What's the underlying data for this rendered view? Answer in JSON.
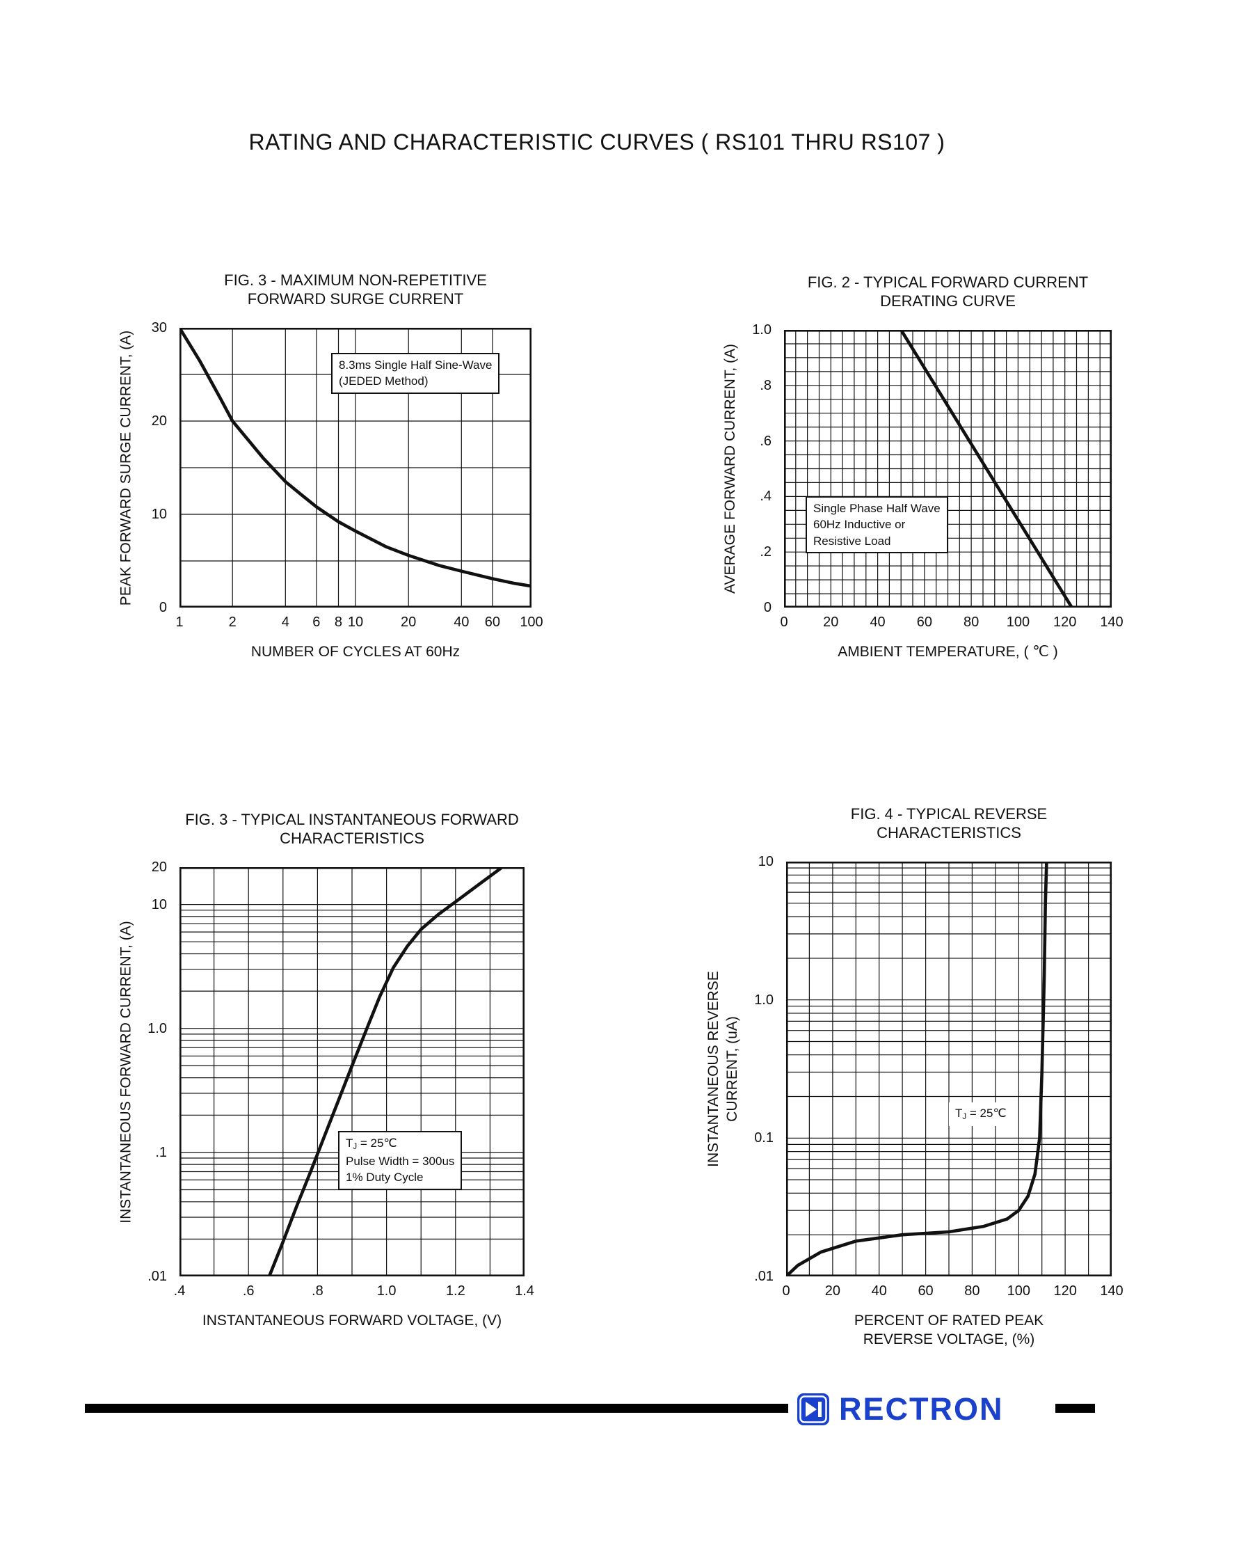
{
  "page": {
    "title": "RATING AND CHARACTERISTIC CURVES ( RS101 THRU RS107 )"
  },
  "footer": {
    "brand": "RECTRON",
    "brand_color": "#1a41cc",
    "icon": "diode-logo"
  },
  "chart_data": [
    {
      "id": "surge-current",
      "type": "line",
      "title_lines": [
        "FIG. 3 - MAXIMUM NON-REPETITIVE",
        "FORWARD SURGE CURRENT"
      ],
      "xlabel_lines": [
        "NUMBER OF CYCLES AT 60Hz"
      ],
      "ylabel_lines": [
        "PEAK FORWARD SURGE CURRENT, (A)"
      ],
      "x_scale": "log",
      "y_scale": "linear",
      "xlim": [
        1,
        100
      ],
      "ylim": [
        0,
        30
      ],
      "x_grid": [
        1,
        2,
        4,
        6,
        8,
        10,
        20,
        40,
        60,
        100
      ],
      "y_grid": [
        0,
        5,
        10,
        15,
        20,
        25,
        30
      ],
      "x_ticks": [
        1,
        2,
        4,
        6,
        8,
        10,
        20,
        40,
        60,
        100
      ],
      "x_tick_labels": [
        "1",
        "2",
        "4",
        "6",
        "8",
        "10",
        "20",
        "40",
        "60",
        "100"
      ],
      "y_ticks": [
        0,
        10,
        20,
        30
      ],
      "y_tick_labels": [
        "0",
        "10",
        "20",
        "30"
      ],
      "annotations": [
        {
          "lines": [
            "8.3ms Single Half Sine-Wave",
            "(JEDED Method)"
          ],
          "boxed": true,
          "fx": 0.43,
          "fy": 0.09
        }
      ],
      "series": [
        {
          "name": "peak-forward-surge-current",
          "x": [
            1,
            1.3,
            1.7,
            2,
            2.5,
            3,
            4,
            5,
            6,
            8,
            10,
            15,
            20,
            30,
            40,
            60,
            80,
            100
          ],
          "y": [
            30,
            26.5,
            22.5,
            20,
            17.8,
            16,
            13.5,
            12,
            10.8,
            9.2,
            8.2,
            6.5,
            5.6,
            4.5,
            3.9,
            3.1,
            2.6,
            2.3
          ]
        }
      ]
    },
    {
      "id": "derating-curve",
      "type": "line",
      "title_lines": [
        "FIG. 2 - TYPICAL FORWARD CURRENT",
        "DERATING CURVE"
      ],
      "xlabel_lines": [
        "AMBIENT TEMPERATURE, ( ℃ )"
      ],
      "ylabel_lines": [
        "AVERAGE FORWARD CURRENT, (A)"
      ],
      "x_scale": "linear",
      "y_scale": "linear",
      "xlim": [
        0,
        140
      ],
      "ylim": [
        0,
        1
      ],
      "x_grid": [
        0,
        5,
        10,
        15,
        20,
        25,
        30,
        35,
        40,
        45,
        50,
        55,
        60,
        65,
        70,
        75,
        80,
        85,
        90,
        95,
        100,
        105,
        110,
        115,
        120,
        125,
        130,
        135,
        140
      ],
      "y_grid": [
        0,
        0.05,
        0.1,
        0.15,
        0.2,
        0.25,
        0.3,
        0.35,
        0.4,
        0.45,
        0.5,
        0.55,
        0.6,
        0.65,
        0.7,
        0.75,
        0.8,
        0.85,
        0.9,
        0.95,
        1
      ],
      "x_ticks": [
        0,
        20,
        40,
        60,
        80,
        100,
        120,
        140
      ],
      "x_tick_labels": [
        "0",
        "20",
        "40",
        "60",
        "80",
        "100",
        "120",
        "140"
      ],
      "y_ticks": [
        0,
        0.2,
        0.4,
        0.6,
        0.8,
        1
      ],
      "y_tick_labels": [
        "0",
        ".2",
        ".4",
        ".6",
        ".8",
        "1.0"
      ],
      "annotations": [
        {
          "lines": [
            "Single Phase Half Wave",
            "60Hz Inductive or",
            "Resistive Load"
          ],
          "boxed": true,
          "fx": 0.065,
          "fy": 0.6
        }
      ],
      "series": [
        {
          "name": "average-forward-current",
          "x": [
            0,
            50,
            123
          ],
          "y": [
            1,
            1,
            0
          ]
        }
      ]
    },
    {
      "id": "forward-characteristics",
      "type": "line",
      "title_lines": [
        "FIG. 3 - TYPICAL INSTANTANEOUS FORWARD",
        "CHARACTERISTICS"
      ],
      "xlabel_lines": [
        "INSTANTANEOUS FORWARD VOLTAGE, (V)"
      ],
      "ylabel_lines": [
        "INSTANTANEOUS FORWARD CURRENT, (A)"
      ],
      "x_scale": "linear",
      "y_scale": "log",
      "xlim": [
        0.4,
        1.4
      ],
      "ylim": [
        0.01,
        20
      ],
      "x_grid": [
        0.4,
        0.5,
        0.6,
        0.7,
        0.8,
        0.9,
        1,
        1.1,
        1.2,
        1.3,
        1.4
      ],
      "y_grid": [
        0.01,
        0.02,
        0.03,
        0.04,
        0.05,
        0.06,
        0.07,
        0.08,
        0.09,
        0.1,
        0.2,
        0.3,
        0.4,
        0.5,
        0.6,
        0.7,
        0.8,
        0.9,
        1,
        2,
        3,
        4,
        5,
        6,
        7,
        8,
        9,
        10,
        20
      ],
      "x_ticks": [
        0.4,
        0.6,
        0.8,
        1,
        1.2,
        1.4
      ],
      "x_tick_labels": [
        ".4",
        ".6",
        ".8",
        "1.0",
        "1.2",
        "1.4"
      ],
      "y_ticks": [
        0.01,
        0.1,
        1,
        10,
        20
      ],
      "y_tick_labels": [
        ".01",
        ".1",
        "1.0",
        "10",
        "20"
      ],
      "annotations": [
        {
          "lines": [
            "TJ = 25℃",
            "Pulse Width = 300us",
            "1% Duty Cycle"
          ],
          "boxed": true,
          "fx": 0.46,
          "fy": 0.645
        }
      ],
      "series": [
        {
          "name": "instantaneous-forward-current",
          "x": [
            0.66,
            0.7,
            0.74,
            0.78,
            0.82,
            0.86,
            0.9,
            0.94,
            0.98,
            1.02,
            1.06,
            1.1,
            1.15,
            1.2,
            1.26,
            1.33
          ],
          "y": [
            0.01,
            0.019,
            0.037,
            0.07,
            0.135,
            0.26,
            0.5,
            0.95,
            1.8,
            3.1,
            4.6,
            6.3,
            8.3,
            10.5,
            14,
            19.5
          ]
        }
      ]
    },
    {
      "id": "reverse-characteristics",
      "type": "line",
      "title_lines": [
        "FIG. 4 - TYPICAL REVERSE",
        "CHARACTERISTICS"
      ],
      "xlabel_lines": [
        "PERCENT OF RATED PEAK",
        "REVERSE VOLTAGE, (%)"
      ],
      "ylabel_lines": [
        "INSTANTANEOUS REVERSE",
        "CURRENT, (uA)"
      ],
      "x_scale": "linear",
      "y_scale": "log",
      "xlim": [
        0,
        140
      ],
      "ylim": [
        0.01,
        10
      ],
      "x_grid": [
        0,
        10,
        20,
        30,
        40,
        50,
        60,
        70,
        80,
        90,
        100,
        110,
        120,
        130,
        140
      ],
      "y_grid": [
        0.01,
        0.02,
        0.03,
        0.04,
        0.05,
        0.06,
        0.07,
        0.08,
        0.09,
        0.1,
        0.2,
        0.3,
        0.4,
        0.5,
        0.6,
        0.7,
        0.8,
        0.9,
        1,
        2,
        3,
        4,
        5,
        6,
        7,
        8,
        9,
        10
      ],
      "x_ticks": [
        0,
        20,
        40,
        60,
        80,
        100,
        120,
        140
      ],
      "x_tick_labels": [
        "0",
        "20",
        "40",
        "60",
        "80",
        "100",
        "120",
        "140"
      ],
      "y_ticks": [
        0.01,
        0.1,
        1,
        10
      ],
      "y_tick_labels": [
        ".01",
        "0.1",
        "1.0",
        "10"
      ],
      "annotations": [
        {
          "lines": [
            "TJ = 25℃"
          ],
          "boxed": false,
          "fx": 0.5,
          "fy": 0.58
        }
      ],
      "series": [
        {
          "name": "instantaneous-reverse-current",
          "x": [
            0,
            5,
            15,
            30,
            50,
            70,
            85,
            95,
            100,
            104,
            107,
            109,
            110,
            111,
            111.5,
            112
          ],
          "y": [
            0.01,
            0.012,
            0.015,
            0.018,
            0.02,
            0.021,
            0.023,
            0.026,
            0.03,
            0.038,
            0.055,
            0.1,
            0.3,
            1.5,
            5,
            10
          ]
        }
      ]
    }
  ]
}
